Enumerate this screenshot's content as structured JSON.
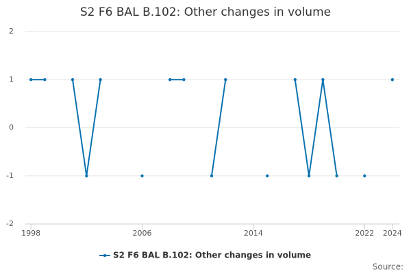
{
  "chart_data": {
    "type": "line",
    "title": "S2 F6 BAL B.102: Other changes in volume",
    "x": [
      1998,
      1999,
      2000,
      2001,
      2002,
      2003,
      2004,
      2005,
      2006,
      2007,
      2008,
      2009,
      2010,
      2011,
      2012,
      2013,
      2014,
      2015,
      2016,
      2017,
      2018,
      2019,
      2020,
      2021,
      2022,
      2023,
      2024
    ],
    "series": [
      {
        "name": "S2 F6 BAL B.102: Other changes in volume",
        "color": "#0a72b0",
        "values": [
          1,
          1,
          null,
          1,
          -1,
          1,
          null,
          null,
          -1,
          null,
          1,
          1,
          null,
          -1,
          1,
          null,
          null,
          -1,
          null,
          1,
          -1,
          1,
          -1,
          null,
          -1,
          null,
          1
        ]
      }
    ],
    "xlim": [
      1997.6,
      2024.5
    ],
    "xticks": [
      1998,
      2006,
      2014,
      2022,
      2024
    ],
    "ylim": [
      -2,
      2
    ],
    "yticks": [
      -2,
      -1,
      0,
      1,
      2
    ],
    "grid": true,
    "legend": "bottom",
    "source": "Source:"
  }
}
